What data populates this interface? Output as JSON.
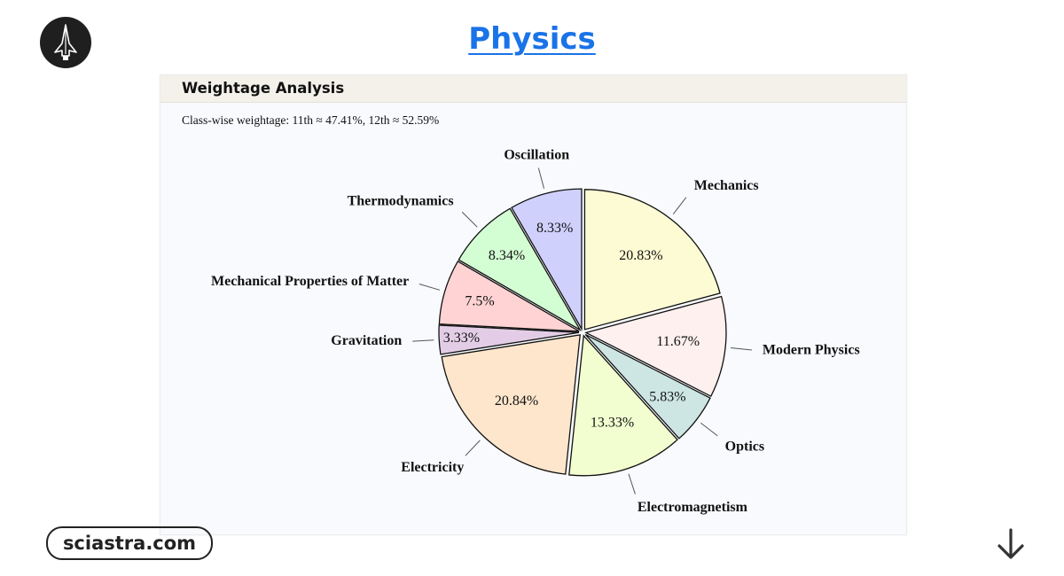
{
  "header": {
    "title": "Physics",
    "logo_icon": "rocket-logo-icon"
  },
  "card": {
    "title": "Weightage Analysis",
    "subtitle": "Class-wise weightage: 11th ≈ 47.41%, 12th ≈ 52.59%"
  },
  "footer": {
    "site_link": "sciastra.com",
    "scroll_icon": "arrow-down-icon"
  },
  "chart_data": {
    "type": "pie",
    "start_angle_deg": 90,
    "direction": "clockwise",
    "exploded": true,
    "slices": [
      {
        "label": "Mechanics",
        "value": 20.83,
        "value_label": "20.83%",
        "color": "#fdfbd3"
      },
      {
        "label": "Modern Physics",
        "value": 11.67,
        "value_label": "11.67%",
        "color": "#fdf0ef"
      },
      {
        "label": "Optics",
        "value": 5.83,
        "value_label": "5.83%",
        "color": "#cde6e3"
      },
      {
        "label": "Electromagnetism",
        "value": 13.33,
        "value_label": "13.33%",
        "color": "#f2fdd0"
      },
      {
        "label": "Electricity",
        "value": 20.84,
        "value_label": "20.84%",
        "color": "#fde6cc"
      },
      {
        "label": "Gravitation",
        "value": 3.33,
        "value_label": "3.33%",
        "color": "#e3cde6"
      },
      {
        "label": "Mechanical Properties of Matter",
        "value": 7.5,
        "value_label": "7.5%",
        "color": "#ffd3d3"
      },
      {
        "label": "Thermodynamics",
        "value": 8.34,
        "value_label": "8.34%",
        "color": "#d3fdd3"
      },
      {
        "label": "Oscillation",
        "value": 8.33,
        "value_label": "8.33%",
        "color": "#d0d0fd"
      }
    ]
  }
}
